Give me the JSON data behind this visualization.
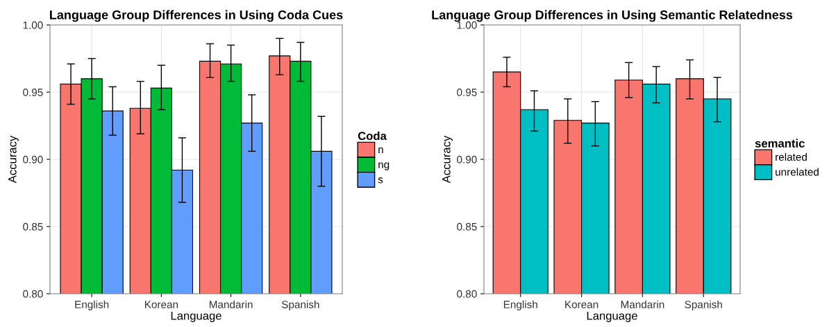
{
  "chart_data": [
    {
      "type": "bar",
      "title": "Language Group Differences in Using Coda Cues",
      "xlabel": "Language",
      "ylabel": "Accuracy",
      "legend_title": "Coda",
      "categories": [
        "English",
        "Korean",
        "Mandarin",
        "Spanish"
      ],
      "series": [
        {
          "name": "n",
          "color": "#f8766d",
          "values": [
            0.956,
            0.938,
            0.973,
            0.977
          ],
          "errors": [
            [
              0.941,
              0.971
            ],
            [
              0.919,
              0.958
            ],
            [
              0.961,
              0.986
            ],
            [
              0.963,
              0.99
            ]
          ]
        },
        {
          "name": "ng",
          "color": "#00ba38",
          "values": [
            0.96,
            0.953,
            0.971,
            0.973
          ],
          "errors": [
            [
              0.945,
              0.975
            ],
            [
              0.937,
              0.97
            ],
            [
              0.958,
              0.985
            ],
            [
              0.958,
              0.987
            ]
          ]
        },
        {
          "name": "s",
          "color": "#619cff",
          "values": [
            0.936,
            0.892,
            0.927,
            0.906
          ],
          "errors": [
            [
              0.918,
              0.954
            ],
            [
              0.868,
              0.916
            ],
            [
              0.906,
              0.948
            ],
            [
              0.88,
              0.932
            ]
          ]
        }
      ],
      "ylim": [
        0.8,
        1.0
      ],
      "yticks": [
        {
          "value": 0.8,
          "label": "0.80"
        },
        {
          "value": 0.85,
          "label": "0.85"
        },
        {
          "value": 0.9,
          "label": "0.90"
        },
        {
          "value": 0.95,
          "label": "0.95"
        },
        {
          "value": 1.0,
          "label": "1.00"
        }
      ],
      "grid": true,
      "legend": "right"
    },
    {
      "type": "bar",
      "title": "Language Group Differences in Using Semantic Relatedness",
      "xlabel": "Language",
      "ylabel": "Accuracy",
      "legend_title": "semantic",
      "categories": [
        "English",
        "Korean",
        "Mandarin",
        "Spanish"
      ],
      "series": [
        {
          "name": "related",
          "color": "#f8766d",
          "values": [
            0.965,
            0.929,
            0.959,
            0.96
          ],
          "errors": [
            [
              0.954,
              0.976
            ],
            [
              0.912,
              0.945
            ],
            [
              0.946,
              0.972
            ],
            [
              0.945,
              0.974
            ]
          ]
        },
        {
          "name": "unrelated",
          "color": "#00bfc4",
          "values": [
            0.937,
            0.927,
            0.956,
            0.945
          ],
          "errors": [
            [
              0.921,
              0.951
            ],
            [
              0.91,
              0.943
            ],
            [
              0.942,
              0.969
            ],
            [
              0.928,
              0.961
            ]
          ]
        }
      ],
      "ylim": [
        0.8,
        1.0
      ],
      "yticks": [
        {
          "value": 0.8,
          "label": "0.80"
        },
        {
          "value": 0.85,
          "label": "0.85"
        },
        {
          "value": 0.9,
          "label": "0.90"
        },
        {
          "value": 0.95,
          "label": "0.95"
        },
        {
          "value": 1.0,
          "label": "1.00"
        }
      ],
      "grid": true,
      "legend": "right"
    }
  ]
}
